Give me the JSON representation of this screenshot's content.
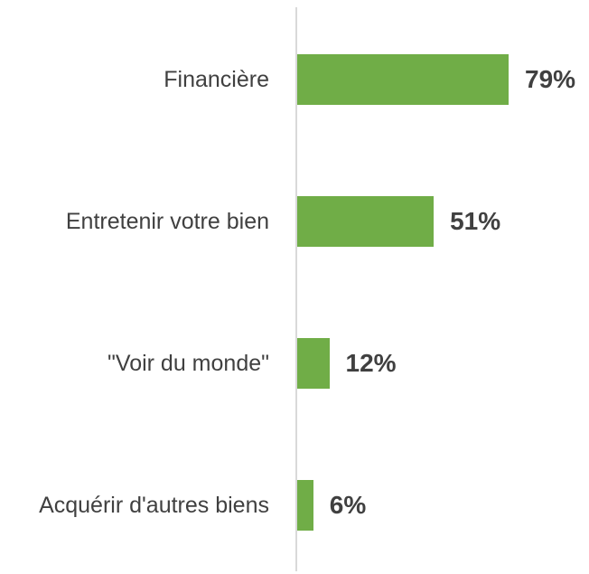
{
  "chart_data": {
    "type": "bar",
    "orientation": "horizontal",
    "categories": [
      "Financière",
      "Entretenir votre bien",
      "\"Voir du monde\"",
      "Acquérir d'autres biens"
    ],
    "values": [
      79,
      51,
      12,
      6
    ],
    "value_labels": [
      "79%",
      "51%",
      "12%",
      "6%"
    ],
    "color": "#70ad47"
  }
}
